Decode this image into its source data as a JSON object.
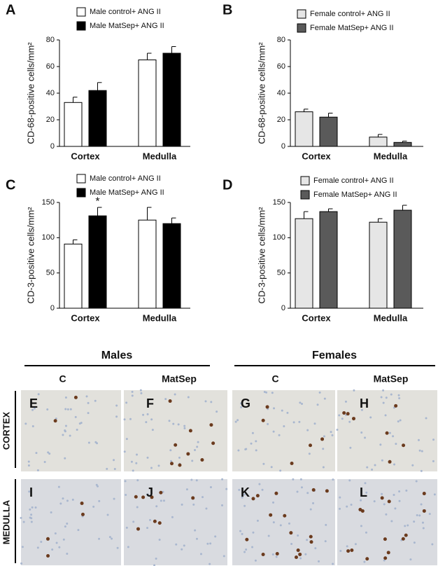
{
  "chart_data": [
    {
      "type": "bar",
      "panel_label": "A",
      "ylabel": "CD-68-positive cells/mm²",
      "categories": [
        "Cortex",
        "Medulla"
      ],
      "series": [
        {
          "name": "Male control+ ANG II",
          "color": "#ffffff",
          "values": [
            33,
            65
          ],
          "errors": [
            4,
            5
          ]
        },
        {
          "name": "Male MatSep+ ANG II",
          "color": "#000000",
          "values": [
            42,
            70
          ],
          "errors": [
            6,
            5
          ]
        }
      ],
      "ylim": [
        0,
        80
      ],
      "yticks": [
        0,
        20,
        40,
        60,
        80
      ]
    },
    {
      "type": "bar",
      "panel_label": "B",
      "ylabel": "CD-68-positive cells/mm²",
      "categories": [
        "Cortex",
        "Medulla"
      ],
      "series": [
        {
          "name": "Female control+ ANG II",
          "color": "#e6e6e6",
          "values": [
            26,
            7
          ],
          "errors": [
            2,
            2
          ]
        },
        {
          "name": "Female MatSep+ ANG II",
          "color": "#5a5a5a",
          "values": [
            22,
            3
          ],
          "errors": [
            3,
            1
          ]
        }
      ],
      "ylim": [
        0,
        80
      ],
      "yticks": [
        0,
        20,
        40,
        60,
        80
      ]
    },
    {
      "type": "bar",
      "panel_label": "C",
      "ylabel": "CD-3-positive cells/mm²",
      "categories": [
        "Cortex",
        "Medulla"
      ],
      "series": [
        {
          "name": "Male control+ ANG II",
          "color": "#ffffff",
          "values": [
            91,
            125
          ],
          "errors": [
            6,
            18
          ]
        },
        {
          "name": "Male MatSep+ ANG II",
          "color": "#000000",
          "values": [
            131,
            120
          ],
          "errors": [
            12,
            8
          ]
        }
      ],
      "annotation": "*",
      "ylim": [
        0,
        150
      ],
      "yticks": [
        0,
        50,
        100,
        150
      ]
    },
    {
      "type": "bar",
      "panel_label": "D",
      "ylabel": "CD-3-positive cells/mm²",
      "categories": [
        "Cortex",
        "Medulla"
      ],
      "series": [
        {
          "name": "Female control+ ANG II",
          "color": "#e6e6e6",
          "values": [
            127,
            122
          ],
          "errors": [
            10,
            5
          ]
        },
        {
          "name": "Female MatSep+ ANG II",
          "color": "#5a5a5a",
          "values": [
            137,
            139
          ],
          "errors": [
            4,
            7
          ]
        }
      ],
      "ylim": [
        0,
        150
      ],
      "yticks": [
        0,
        50,
        100,
        150
      ]
    }
  ],
  "micrographs": {
    "groups": [
      "Males",
      "Females"
    ],
    "columns": [
      "C",
      "MatSep",
      "C",
      "MatSep"
    ],
    "rows": [
      "CORTEX",
      "MEDULLA"
    ],
    "panels": [
      "E",
      "F",
      "G",
      "H",
      "I",
      "J",
      "K",
      "L"
    ]
  }
}
